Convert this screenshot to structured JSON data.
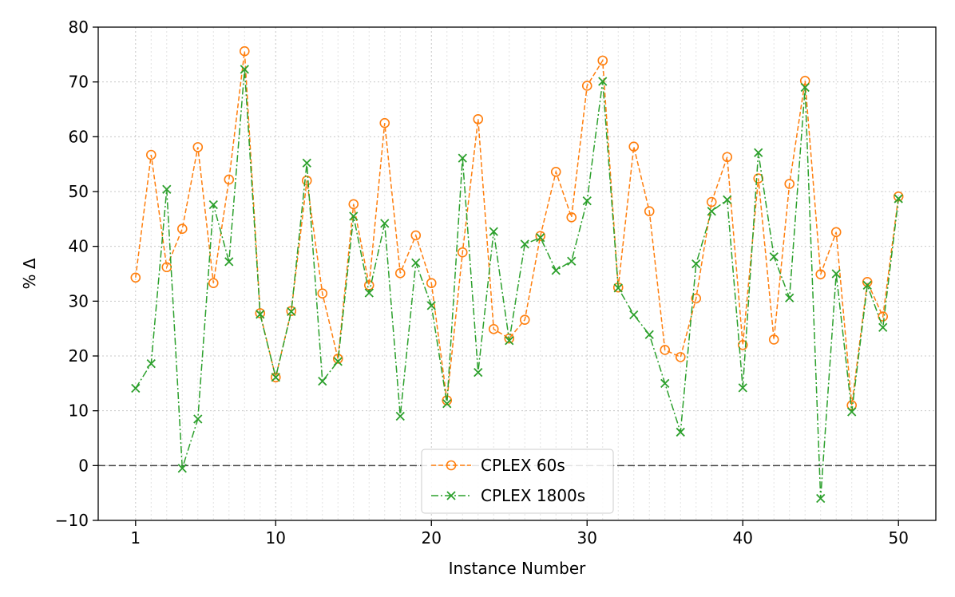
{
  "chart_data": {
    "type": "line",
    "title": "",
    "xlabel": "Instance Number",
    "ylabel": "% Δ",
    "xlim": [
      -1.4,
      52.4
    ],
    "ylim": [
      -10,
      80
    ],
    "xticks": [
      1,
      10,
      20,
      30,
      40,
      50
    ],
    "xtick_labels": [
      "1",
      "10",
      "20",
      "30",
      "40",
      "50"
    ],
    "yticks": [
      -10,
      0,
      10,
      20,
      30,
      40,
      50,
      60,
      70,
      80
    ],
    "ytick_labels": [
      "−10",
      "0",
      "10",
      "20",
      "30",
      "40",
      "50",
      "60",
      "70",
      "80"
    ],
    "grid": true,
    "reference_line": 0,
    "legend_position": "lower-center",
    "x": [
      1,
      2,
      3,
      4,
      5,
      6,
      7,
      8,
      9,
      10,
      11,
      12,
      13,
      14,
      15,
      16,
      17,
      18,
      19,
      20,
      21,
      22,
      23,
      24,
      25,
      26,
      27,
      28,
      29,
      30,
      31,
      32,
      33,
      34,
      35,
      36,
      37,
      38,
      39,
      40,
      41,
      42,
      43,
      44,
      45,
      46,
      47,
      48,
      49,
      50
    ],
    "series": [
      {
        "name": "CPLEX 60s",
        "color": "#ff7f0e",
        "marker": "circle",
        "linestyle": "dashed",
        "values": [
          34.3,
          56.7,
          36.2,
          43.2,
          58.1,
          33.3,
          52.2,
          75.6,
          27.8,
          16.1,
          28.2,
          52.0,
          31.4,
          19.5,
          47.7,
          32.9,
          62.5,
          35.1,
          42.0,
          33.3,
          11.9,
          38.9,
          63.2,
          24.9,
          23.2,
          26.6,
          41.9,
          53.6,
          45.3,
          69.3,
          73.9,
          32.5,
          58.2,
          46.4,
          21.1,
          19.8,
          30.5,
          48.1,
          56.3,
          22.0,
          52.4,
          23.0,
          51.4,
          70.2,
          34.9,
          42.6,
          11.0,
          33.5,
          27.2,
          49.1
        ]
      },
      {
        "name": "CPLEX 1800s",
        "color": "#2ca02c",
        "marker": "x",
        "linestyle": "dashdot",
        "values": [
          14.1,
          18.6,
          50.4,
          -0.5,
          8.5,
          47.6,
          37.2,
          72.3,
          27.6,
          16.1,
          28.1,
          55.2,
          15.4,
          19.0,
          45.5,
          31.5,
          44.2,
          9.0,
          37.0,
          29.2,
          11.3,
          56.1,
          17.0,
          42.7,
          22.8,
          40.4,
          41.6,
          35.6,
          37.3,
          48.3,
          70.1,
          32.4,
          27.5,
          23.9,
          15.0,
          6.1,
          36.8,
          46.4,
          48.5,
          14.2,
          57.1,
          38.1,
          30.6,
          69.0,
          -6.0,
          35.0,
          9.8,
          32.9,
          25.2,
          48.7
        ]
      }
    ]
  }
}
